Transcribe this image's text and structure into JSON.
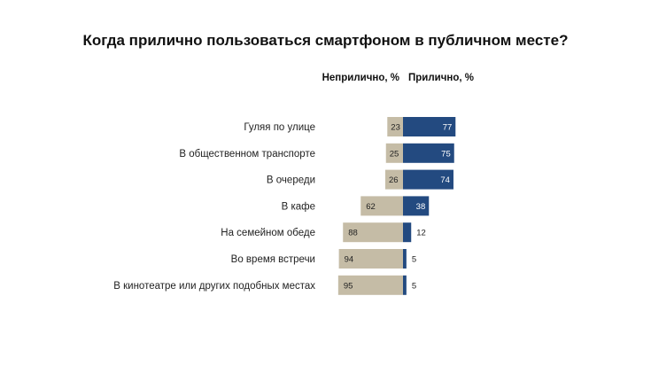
{
  "chart_data": {
    "type": "bar",
    "orientation": "horizontal-diverging",
    "title": "Когда прилично пользоваться смартфоном в публичном месте?",
    "categories": [
      "Гуляя по улице",
      "В общественном транспорте",
      "В очереди",
      "В кафе",
      "На семейном обеде",
      "Во время встречи",
      "В кинотеатре или других подобных местах"
    ],
    "series": [
      {
        "name": "Неприлично, %",
        "color": "#c5bca6",
        "values": [
          23,
          25,
          26,
          62,
          88,
          94,
          95
        ]
      },
      {
        "name": "Прилично, %",
        "color": "#234a80",
        "values": [
          77,
          75,
          74,
          38,
          12,
          5,
          5
        ]
      }
    ],
    "xlim": [
      0,
      100
    ],
    "grid": false
  }
}
